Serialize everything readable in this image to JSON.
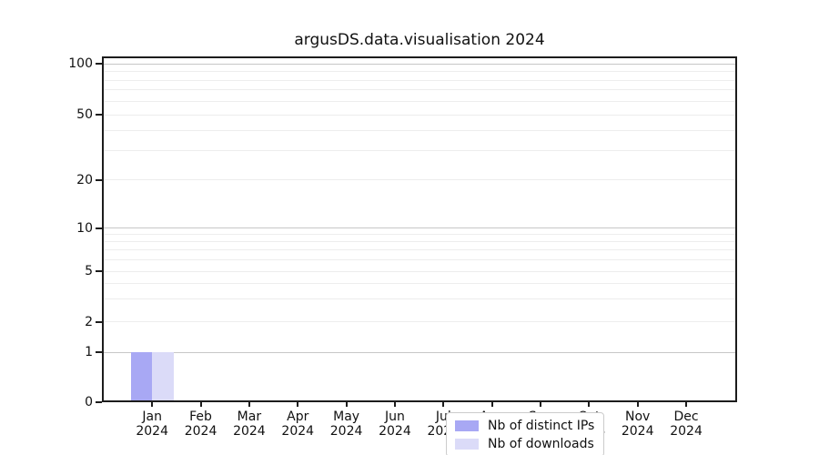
{
  "title": "argusDS.data.visualisation 2024",
  "chart_data": {
    "type": "bar",
    "title": "argusDS.data.visualisation 2024",
    "categories": [
      "Jan",
      "Feb",
      "Mar",
      "Apr",
      "May",
      "Jun",
      "Jul",
      "Aug",
      "Sep",
      "Oct",
      "Nov",
      "Dec"
    ],
    "category_year": "2024",
    "series": [
      {
        "name": "Nb of distinct IPs",
        "color": "#a8a8f4",
        "values": [
          1,
          0,
          0,
          0,
          0,
          0,
          0,
          0,
          0,
          0,
          0,
          0
        ]
      },
      {
        "name": "Nb of downloads",
        "color": "#dbdbf8",
        "values": [
          1,
          0,
          0,
          0,
          0,
          0,
          0,
          0,
          0,
          0,
          0,
          0
        ]
      }
    ],
    "xlabel": "",
    "ylabel": "",
    "y_scale": "symlog",
    "y_ticks": [
      0,
      1,
      2,
      5,
      10,
      20,
      50,
      100
    ],
    "y_minor_ticks": [
      3,
      4,
      6,
      7,
      8,
      9,
      30,
      40,
      60,
      70,
      80,
      90
    ],
    "y_major_decades": [
      1,
      10,
      100
    ],
    "ylim": [
      0,
      110
    ],
    "grid": "horizontal major and minor, on",
    "legend_position": "lower center"
  },
  "colors": {
    "grid_major": "#c7c7c7",
    "grid_minor": "#ededed",
    "spine": "#1c1c1c",
    "background": "#ffffff"
  }
}
